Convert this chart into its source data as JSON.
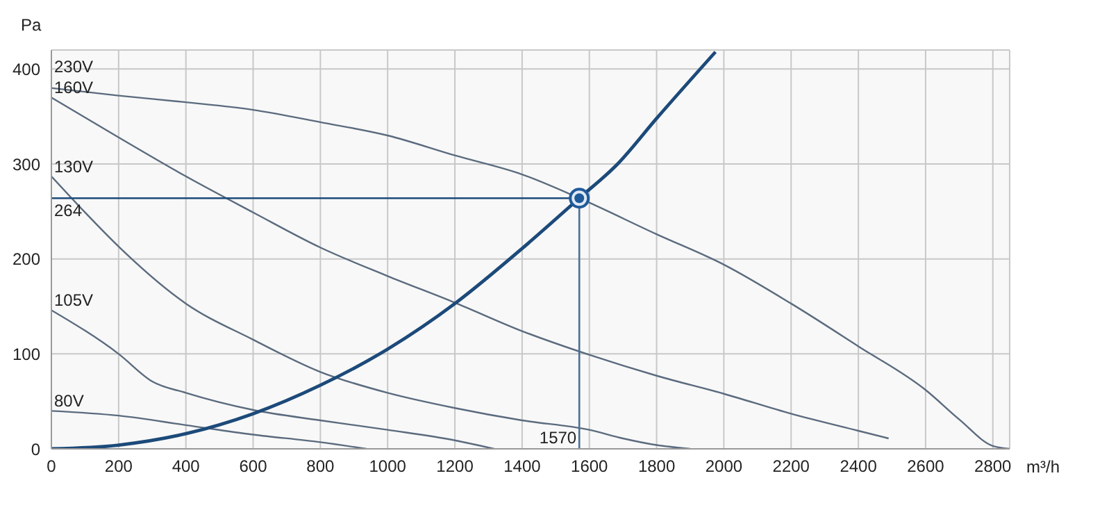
{
  "chart_data": {
    "type": "line",
    "xlabel": "m³/h",
    "ylabel": "Pa",
    "xlim": [
      0,
      2850
    ],
    "ylim": [
      0,
      420
    ],
    "xticks": [
      0,
      200,
      400,
      600,
      800,
      1000,
      1200,
      1400,
      1600,
      1800,
      2000,
      2200,
      2400,
      2600,
      2800
    ],
    "yticks": [
      0,
      100,
      200,
      300,
      400
    ],
    "grid": true,
    "marker": "none",
    "series": [
      {
        "name": "230V",
        "color": "#5b6b7e",
        "x": [
          0,
          200,
          400,
          600,
          800,
          1000,
          1200,
          1400,
          1570,
          1800,
          2000,
          2200,
          2400,
          2600,
          2700,
          2800,
          2850
        ],
        "values": [
          380,
          372,
          365,
          357,
          344,
          330,
          309,
          289,
          264,
          226,
          194,
          153,
          108,
          62,
          31,
          3,
          0
        ]
      },
      {
        "name": "160V",
        "color": "#5b6b7e",
        "x": [
          0,
          200,
          400,
          600,
          800,
          1000,
          1200,
          1400,
          1600,
          1800,
          2000,
          2200,
          2400,
          2490
        ],
        "values": [
          370,
          328,
          287,
          249,
          212,
          182,
          154,
          124,
          99,
          77,
          58,
          37,
          19,
          11
        ]
      },
      {
        "name": "130V",
        "color": "#5b6b7e",
        "x": [
          0,
          100,
          200,
          400,
          600,
          800,
          1000,
          1200,
          1400,
          1600,
          1700,
          1800,
          1900
        ],
        "values": [
          287,
          249,
          213,
          153,
          115,
          81,
          59,
          43,
          30,
          20,
          11,
          4,
          0
        ]
      },
      {
        "name": "105V",
        "color": "#5b6b7e",
        "x": [
          0,
          200,
          300,
          400,
          600,
          800,
          1000,
          1200,
          1317
        ],
        "values": [
          146,
          100,
          71,
          59,
          41,
          30,
          20,
          9,
          0
        ]
      },
      {
        "name": "80V",
        "color": "#5b6b7e",
        "x": [
          0,
          200,
          400,
          600,
          800,
          937
        ],
        "values": [
          40,
          35,
          25,
          15,
          7,
          0
        ]
      },
      {
        "type": "line",
        "color": "#1c4a7a",
        "x": [
          0,
          200,
          400,
          600,
          800,
          1000,
          1200,
          1400,
          1570,
          1684,
          1800,
          1975
        ],
        "values": [
          0,
          4,
          16,
          37,
          67,
          105,
          153,
          211,
          264,
          300,
          348,
          418
        ]
      },
      {
        "type": "scatter",
        "marker": "circle",
        "color": "#1f5a9a",
        "x": [
          1570
        ],
        "values": [
          264
        ]
      }
    ],
    "ref_lines": [
      {
        "axis": "y",
        "value": 264,
        "label": "264",
        "color": "#1c4a7a"
      },
      {
        "axis": "x",
        "value": 1570,
        "label": "1570",
        "color": "#4a6f96"
      }
    ]
  }
}
